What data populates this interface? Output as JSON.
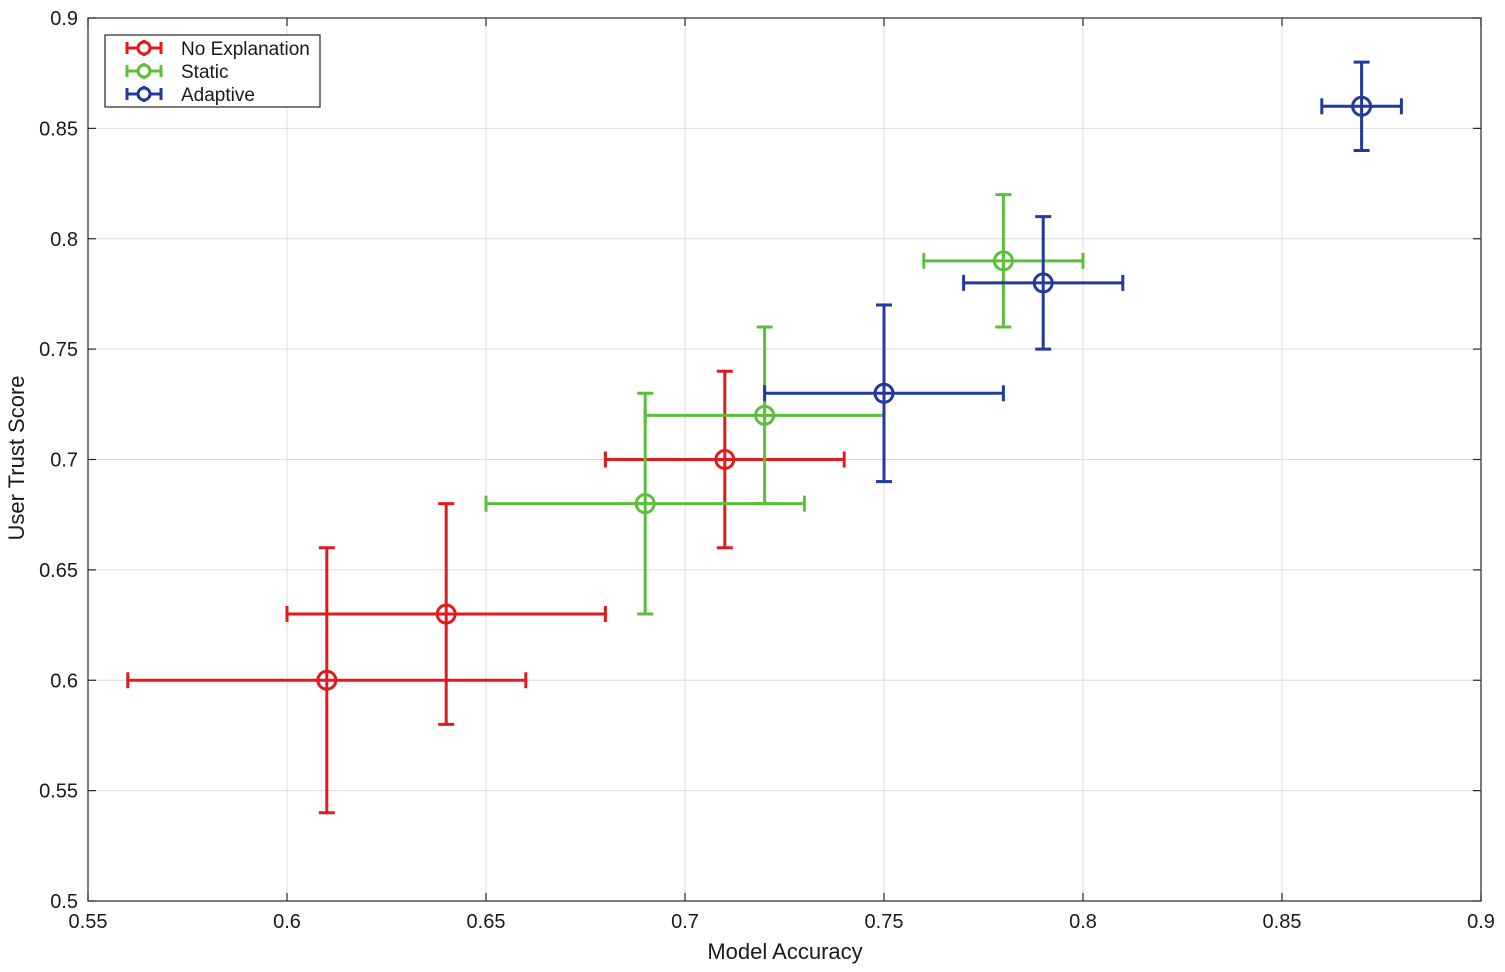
{
  "chart_data": {
    "type": "scatter",
    "title": "",
    "xlabel": "Model Accuracy",
    "ylabel": "User Trust Score",
    "xlim": [
      0.55,
      0.9
    ],
    "ylim": [
      0.5,
      0.9
    ],
    "grid": true,
    "legend_position": "top-left",
    "x_ticks": [
      "0.55",
      "0.6",
      "0.65",
      "0.7",
      "0.75",
      "0.8",
      "0.85",
      "0.9"
    ],
    "y_ticks": [
      "0.5",
      "0.55",
      "0.6",
      "0.65",
      "0.7",
      "0.75",
      "0.8",
      "0.85",
      "0.9"
    ],
    "series": [
      {
        "name": "No Explanation",
        "color": "#e31a1c",
        "points": [
          {
            "x": 0.61,
            "y": 0.6,
            "x_err": 0.05,
            "y_err": 0.06
          },
          {
            "x": 0.64,
            "y": 0.63,
            "x_err": 0.04,
            "y_err": 0.05
          },
          {
            "x": 0.71,
            "y": 0.7,
            "x_err": 0.03,
            "y_err": 0.04
          }
        ]
      },
      {
        "name": "Static",
        "color": "#5cbf3b",
        "points": [
          {
            "x": 0.69,
            "y": 0.68,
            "x_err": 0.04,
            "y_err": 0.05
          },
          {
            "x": 0.72,
            "y": 0.72,
            "x_err": 0.03,
            "y_err": 0.04
          },
          {
            "x": 0.78,
            "y": 0.79,
            "x_err": 0.02,
            "y_err": 0.03
          }
        ]
      },
      {
        "name": "Adaptive",
        "color": "#233a9c",
        "points": [
          {
            "x": 0.75,
            "y": 0.73,
            "x_err": 0.03,
            "y_err": 0.04
          },
          {
            "x": 0.79,
            "y": 0.78,
            "x_err": 0.02,
            "y_err": 0.03
          },
          {
            "x": 0.87,
            "y": 0.86,
            "x_err": 0.01,
            "y_err": 0.02
          }
        ]
      }
    ]
  }
}
